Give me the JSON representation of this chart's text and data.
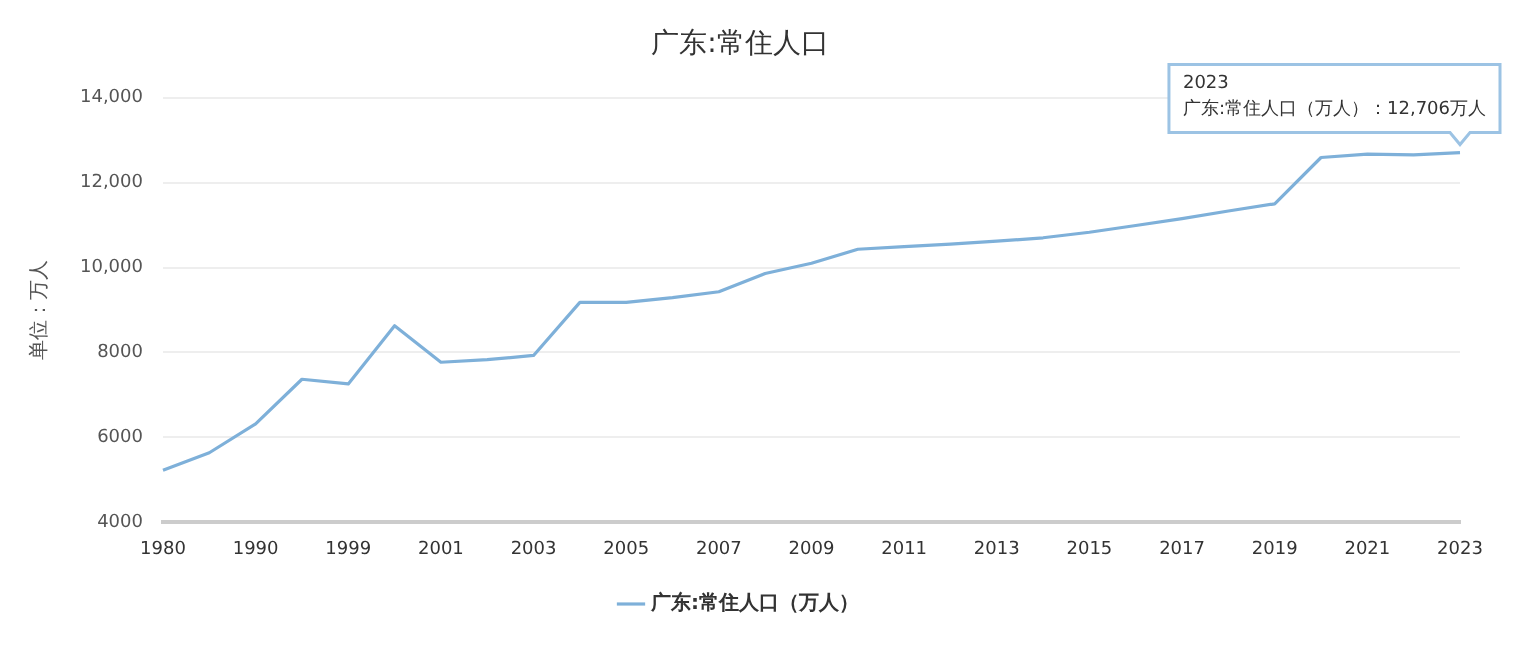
{
  "chart_data": {
    "type": "line",
    "title": "广东:常住人口",
    "ylabel": "单位：万人",
    "categories": [
      "1980",
      null,
      "1990",
      null,
      "1999",
      null,
      "2001",
      null,
      "2003",
      null,
      "2005",
      null,
      "2007",
      null,
      "2009",
      null,
      "2011",
      null,
      "2013",
      null,
      "2015",
      null,
      "2017",
      null,
      "2019",
      null,
      "2021",
      null,
      "2023"
    ],
    "series": [
      {
        "name": "广东:常住人口（万人）",
        "color": "#7eb0d9",
        "values": [
          5230,
          5640,
          6320,
          7370,
          7260,
          8630,
          7770,
          7830,
          7930,
          9180,
          9180,
          9290,
          9430,
          9860,
          10100,
          10430,
          10490,
          10550,
          10620,
          10700,
          10830,
          10990,
          11150,
          11330,
          11500,
          12590,
          12670,
          12650,
          12706
        ]
      }
    ],
    "ylim": [
      4000,
      14000
    ],
    "yticks": [
      4000,
      6000,
      8000,
      {
        "value": 10000,
        "label": "10,000"
      },
      {
        "value": 12000,
        "label": "12,000"
      },
      {
        "value": 14000,
        "label": "14,000"
      }
    ],
    "grid": "y",
    "legend": "bottom",
    "marker": "none",
    "line_style": "solid",
    "annotations": [
      {
        "text": "2023\n广东:常住人口（万人）：12,706万人",
        "x": "2023",
        "y": 12706
      }
    ]
  }
}
